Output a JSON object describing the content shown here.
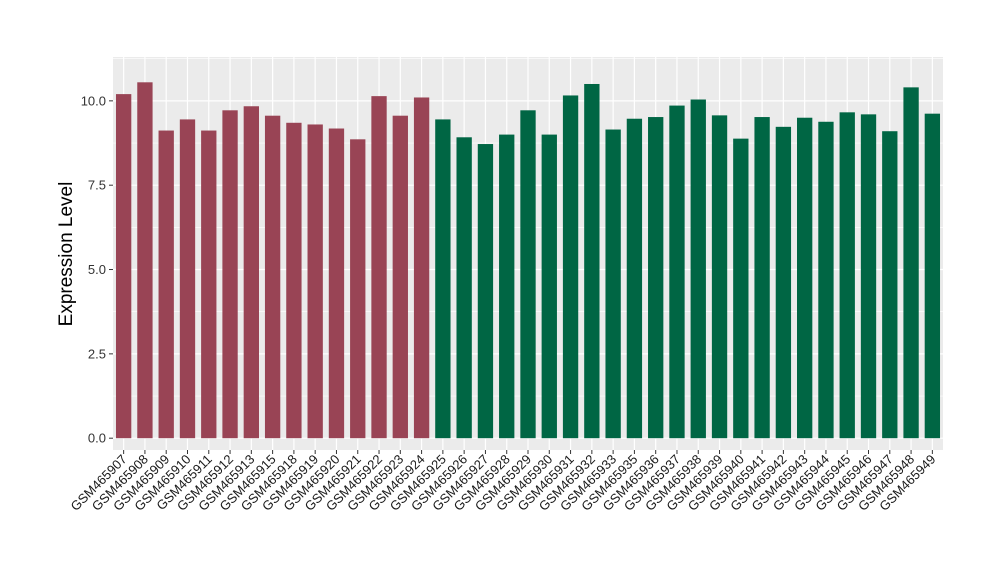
{
  "chart_data": {
    "type": "bar",
    "title": "",
    "xlabel": "",
    "ylabel": "Expression Level",
    "ylim": [
      -0.35,
      11.3
    ],
    "yticks": [
      "0.0",
      "2.5",
      "5.0",
      "7.5",
      "10.0"
    ],
    "ytick_values": [
      0,
      2.5,
      5,
      7.5,
      10
    ],
    "grid": true,
    "colors": {
      "group1": "#994455",
      "group2": "#006644",
      "panel": "#ebebeb",
      "grid": "#ffffff"
    },
    "categories": [
      "GSM465907",
      "GSM465908",
      "GSM465909",
      "GSM465910",
      "GSM465911",
      "GSM465912",
      "GSM465913",
      "GSM465915",
      "GSM465918",
      "GSM465919",
      "GSM465920",
      "GSM465921",
      "GSM465922",
      "GSM465923",
      "GSM465924",
      "GSM465925",
      "GSM465926",
      "GSM465927",
      "GSM465928",
      "GSM465929",
      "GSM465930",
      "GSM465931",
      "GSM465932",
      "GSM465933",
      "GSM465935",
      "GSM465936",
      "GSM465937",
      "GSM465938",
      "GSM465939",
      "GSM465940",
      "GSM465941",
      "GSM465942",
      "GSM465943",
      "GSM465944",
      "GSM465945",
      "GSM465946",
      "GSM465947",
      "GSM465948",
      "GSM465949"
    ],
    "values": [
      10.2,
      10.55,
      9.12,
      9.45,
      9.12,
      9.72,
      9.84,
      9.56,
      9.35,
      9.3,
      9.18,
      8.86,
      10.14,
      9.56,
      10.1,
      9.45,
      8.92,
      8.72,
      9.0,
      9.72,
      9.0,
      10.16,
      10.5,
      9.15,
      9.47,
      9.52,
      9.86,
      10.04,
      9.57,
      8.88,
      9.52,
      9.23,
      9.5,
      9.38,
      9.66,
      9.6,
      9.1,
      10.4,
      9.62
    ],
    "groups": [
      1,
      1,
      1,
      1,
      1,
      1,
      1,
      1,
      1,
      1,
      1,
      1,
      1,
      1,
      1,
      2,
      2,
      2,
      2,
      2,
      2,
      2,
      2,
      2,
      2,
      2,
      2,
      2,
      2,
      2,
      2,
      2,
      2,
      2,
      2,
      2,
      2,
      2,
      2
    ]
  }
}
